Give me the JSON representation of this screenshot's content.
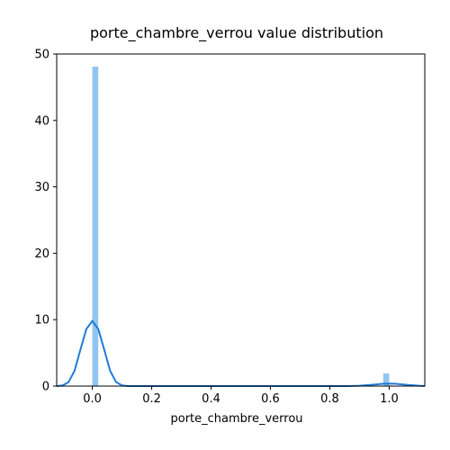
{
  "chart_data": {
    "type": "bar",
    "title": "porte_chambre_verrou value distribution",
    "xlabel": "porte_chambre_verrou",
    "ylabel": "",
    "xlim": [
      -0.12,
      1.12
    ],
    "ylim": [
      0,
      50
    ],
    "xticks": [
      0.0,
      0.2,
      0.4,
      0.6,
      0.8,
      1.0
    ],
    "xtick_labels": [
      "0.0",
      "0.2",
      "0.4",
      "0.6",
      "0.8",
      "1.0"
    ],
    "yticks": [
      0,
      10,
      20,
      30,
      40,
      50
    ],
    "ytick_labels": [
      "0",
      "10",
      "20",
      "30",
      "40",
      "50"
    ],
    "grid": false,
    "histogram": {
      "bin_width": 0.02,
      "bins": [
        {
          "x0": 0.0,
          "x1": 0.02,
          "density": 48.1
        },
        {
          "x0": 0.98,
          "x1": 1.0,
          "density": 1.9
        }
      ]
    },
    "kde": {
      "x": [
        -0.12,
        -0.1,
        -0.08,
        -0.06,
        -0.04,
        -0.02,
        0.0,
        0.02,
        0.04,
        0.06,
        0.08,
        0.1,
        0.12,
        0.16,
        0.2,
        0.4,
        0.6,
        0.8,
        0.86,
        0.9,
        0.94,
        0.98,
        1.0,
        1.02,
        1.06,
        1.1,
        1.12
      ],
      "y": [
        0.0,
        0.1,
        0.6,
        2.3,
        5.5,
        8.6,
        9.8,
        8.6,
        5.5,
        2.3,
        0.6,
        0.1,
        0.0,
        0.0,
        0.0,
        0.0,
        0.0,
        0.0,
        0.0,
        0.05,
        0.18,
        0.35,
        0.38,
        0.35,
        0.18,
        0.05,
        0.02
      ]
    },
    "colors": {
      "bars": "#92c5f0",
      "kde_line": "#1f7ad6"
    }
  }
}
